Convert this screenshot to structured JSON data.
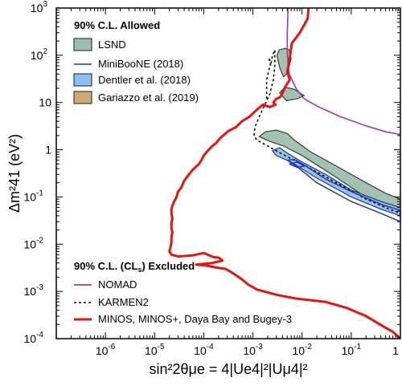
{
  "chart_data": {
    "type": "line",
    "xscale": "log",
    "yscale": "log",
    "xlim": [
      1e-07,
      1
    ],
    "ylim": [
      0.0001,
      1000
    ],
    "x_ticks": [
      {
        "value": 1e-06,
        "label": "10",
        "exp": "-6"
      },
      {
        "value": 1e-05,
        "label": "10",
        "exp": "-5"
      },
      {
        "value": 0.0001,
        "label": "10",
        "exp": "-4"
      },
      {
        "value": 0.001,
        "label": "10",
        "exp": "-3"
      },
      {
        "value": 0.01,
        "label": "10",
        "exp": "-2"
      },
      {
        "value": 0.1,
        "label": "10",
        "exp": "-1"
      },
      {
        "value": 1,
        "label": "1",
        "exp": ""
      }
    ],
    "y_ticks": [
      {
        "value": 0.0001,
        "label": "10",
        "exp": "-4"
      },
      {
        "value": 0.001,
        "label": "10",
        "exp": "-3"
      },
      {
        "value": 0.01,
        "label": "10",
        "exp": "-2"
      },
      {
        "value": 0.1,
        "label": "10",
        "exp": "-1"
      },
      {
        "value": 1,
        "label": "1",
        "exp": ""
      },
      {
        "value": 10,
        "label": "10",
        "exp": ""
      },
      {
        "value": 100,
        "label": "10",
        "exp": "2"
      },
      {
        "value": 1000,
        "label": "10",
        "exp": "3"
      }
    ],
    "xlabel": "sin²2θμe = 4|Ue4|²|Uμ4|²",
    "ylabel": "Δm²41 (eV²)",
    "legend_allowed": {
      "heading": "90% C.L. Allowed",
      "entries": [
        {
          "name": "LSND",
          "kind": "patch",
          "fill": "#9fbfae",
          "stroke": "#2f3f36"
        },
        {
          "name": "MiniBooNE (2018)",
          "kind": "line",
          "stroke": "#1f34c9"
        },
        {
          "name": "Dentler et al. (2018)",
          "kind": "patch",
          "fill": "#8fbff0",
          "stroke": "#26405a"
        },
        {
          "name": "Gariazzo et al. (2019)",
          "kind": "patch",
          "fill": "#cda878",
          "stroke": "#4a3a28"
        }
      ]
    },
    "legend_excluded": {
      "heading_prefix": "90% C.L. (CL",
      "heading_sub": "s",
      "heading_suffix": ") Excluded",
      "entries": [
        {
          "name": "NOMAD",
          "kind": "line",
          "stroke": "#a53aa5",
          "dash": "none"
        },
        {
          "name": "KARMEN2",
          "kind": "line",
          "stroke": "#000000",
          "dash": "3,3"
        },
        {
          "name": "MINOS, MINOS+, Daya Bay and Bugey-3",
          "kind": "line",
          "stroke": "#e8140c",
          "dash": "none"
        }
      ]
    },
    "series": [
      {
        "name": "NOMAD",
        "kind": "line",
        "stroke": "#a53aa5",
        "width": 1.6,
        "points": [
          [
            0.0052,
            1000
          ],
          [
            0.005,
            300
          ],
          [
            0.005,
            100
          ],
          [
            0.0055,
            40
          ],
          [
            0.0075,
            20
          ],
          [
            0.011,
            12
          ],
          [
            0.022,
            8
          ],
          [
            0.06,
            5
          ],
          [
            0.2,
            3.2
          ],
          [
            0.5,
            2.4
          ],
          [
            1,
            2.1
          ]
        ]
      },
      {
        "name": "KARMEN2",
        "kind": "line",
        "stroke": "#000000",
        "width": 1.5,
        "dash": "3,3",
        "points": [
          [
            0.0019,
            12
          ],
          [
            0.0019,
            30
          ],
          [
            0.0023,
            70
          ],
          [
            0.0021,
            90
          ],
          [
            0.0023,
            60
          ],
          [
            0.0025,
            100
          ],
          [
            0.0028,
            130
          ],
          [
            0.0028,
            60
          ],
          [
            0.0026,
            30
          ],
          [
            0.0022,
            15
          ],
          [
            0.0014,
            5.5
          ],
          [
            0.0011,
            3
          ],
          [
            0.00105,
            2
          ],
          [
            0.0012,
            1.6
          ],
          [
            0.002,
            1.2
          ],
          [
            0.004,
            0.8
          ],
          [
            0.012,
            0.45
          ],
          [
            0.05,
            0.2
          ],
          [
            0.2,
            0.09
          ],
          [
            0.6,
            0.055
          ],
          [
            1,
            0.045
          ]
        ]
      },
      {
        "name": "MINOS, MINOS+, Daya Bay and Bugey-3",
        "kind": "line",
        "stroke": "#e8140c",
        "width": 3,
        "points": [
          [
            0.0135,
            1000
          ],
          [
            0.013,
            600
          ],
          [
            0.0105,
            400
          ],
          [
            0.009,
            300
          ],
          [
            0.0072,
            220
          ],
          [
            0.0062,
            180
          ],
          [
            0.0058,
            110
          ],
          [
            0.0054,
            70
          ],
          [
            0.005,
            45
          ],
          [
            0.0056,
            30
          ],
          [
            0.0046,
            22
          ],
          [
            0.004,
            16
          ],
          [
            0.0036,
            13
          ],
          [
            0.003,
            12
          ],
          [
            0.0026,
            10
          ],
          [
            0.0029,
            9
          ],
          [
            0.0022,
            8
          ],
          [
            0.0016,
            9
          ],
          [
            0.0012,
            7
          ],
          [
            0.00085,
            5
          ],
          [
            0.0006,
            4
          ],
          [
            0.00045,
            3
          ],
          [
            0.00032,
            2.5
          ],
          [
            0.00022,
            1.8
          ],
          [
            0.00018,
            1.4
          ],
          [
            0.00015,
            1.2
          ],
          [
            0.00012,
            0.95
          ],
          [
            0.0001,
            0.75
          ],
          [
            9e-05,
            0.6
          ],
          [
            8e-05,
            0.5
          ],
          [
            6e-05,
            0.38
          ],
          [
            5e-05,
            0.3
          ],
          [
            4e-05,
            0.22
          ],
          [
            3.5e-05,
            0.16
          ],
          [
            3e-05,
            0.13
          ],
          [
            2.8e-05,
            0.1
          ],
          [
            2.5e-05,
            0.08
          ],
          [
            2.3e-05,
            0.065
          ],
          [
            2.2e-05,
            0.055
          ],
          [
            2.2e-05,
            0.045
          ],
          [
            2.3e-05,
            0.035
          ],
          [
            2.2e-05,
            0.028
          ],
          [
            2.2e-05,
            0.022
          ],
          [
            2.3e-05,
            0.018
          ],
          [
            2.2e-05,
            0.014
          ],
          [
            2.2e-05,
            0.011
          ],
          [
            2.1e-05,
            0.0085
          ],
          [
            2e-05,
            0.007
          ],
          [
            2.2e-05,
            0.006
          ],
          [
            3e-05,
            0.0055
          ],
          [
            6e-05,
            0.0058
          ],
          [
            0.0001,
            0.0065
          ],
          [
            0.00013,
            0.0058
          ],
          [
            0.00016,
            0.0053
          ],
          [
            0.0002,
            0.0052
          ],
          [
            0.00024,
            0.0045
          ],
          [
            0.00015,
            0.004
          ],
          [
            7e-05,
            0.0037
          ],
          [
            0.00012,
            0.0035
          ],
          [
            0.00018,
            0.0032
          ],
          [
            0.00028,
            0.003
          ],
          [
            0.0004,
            0.0024
          ],
          [
            0.0006,
            0.0018
          ],
          [
            0.0008,
            0.0014
          ],
          [
            0.0012,
            0.0011
          ],
          [
            0.003,
            0.00085
          ],
          [
            0.008,
            0.0007
          ],
          [
            0.03,
            0.0006
          ],
          [
            0.08,
            0.00045
          ],
          [
            0.2,
            0.0003
          ],
          [
            0.5,
            0.00017
          ],
          [
            0.7,
            0.00014
          ],
          [
            1,
            0.0001
          ]
        ]
      },
      {
        "name": "LSND",
        "kind": "patch",
        "fill": "#9fbfae",
        "stroke": "#2f3f36",
        "points": [
          [
            0.00135,
            1.9
          ],
          [
            0.0022,
            1.5
          ],
          [
            0.0042,
            1.2
          ],
          [
            0.01,
            0.75
          ],
          [
            0.04,
            0.3
          ],
          [
            0.15,
            0.12
          ],
          [
            0.6,
            0.055
          ],
          [
            1,
            0.045
          ],
          [
            1,
            0.09
          ],
          [
            0.5,
            0.12
          ],
          [
            0.2,
            0.2
          ],
          [
            0.05,
            0.45
          ],
          [
            0.015,
            0.9
          ],
          [
            0.007,
            1.6
          ],
          [
            0.005,
            2.2
          ],
          [
            0.003,
            2.6
          ],
          [
            0.0018,
            2.4
          ],
          [
            0.00135,
            1.9
          ]
        ]
      },
      {
        "name": "LSND",
        "kind": "patch",
        "fill": "#9fbfae",
        "stroke": "#2f3f36",
        "points": [
          [
            0.0031,
            100
          ],
          [
            0.0035,
            55
          ],
          [
            0.0042,
            35
          ],
          [
            0.0048,
            40
          ],
          [
            0.0055,
            60
          ],
          [
            0.006,
            85
          ],
          [
            0.0055,
            130
          ],
          [
            0.0045,
            140
          ],
          [
            0.0034,
            130
          ],
          [
            0.0031,
            100
          ]
        ]
      },
      {
        "name": "LSND",
        "kind": "patch",
        "fill": "#9fbfae",
        "stroke": "#2f3f36",
        "points": [
          [
            0.0035,
            16
          ],
          [
            0.0048,
            11
          ],
          [
            0.008,
            12
          ],
          [
            0.011,
            14
          ],
          [
            0.007,
            19
          ],
          [
            0.0045,
            21
          ],
          [
            0.0035,
            16
          ]
        ]
      },
      {
        "name": "Dentler et al. (2018)",
        "kind": "patch",
        "fill": "#8fbff0",
        "stroke": "#26405a",
        "points": [
          [
            0.0025,
            0.95
          ],
          [
            0.003,
            0.75
          ],
          [
            0.006,
            0.55
          ],
          [
            0.02,
            0.25
          ],
          [
            0.1,
            0.1
          ],
          [
            0.4,
            0.055
          ],
          [
            1,
            0.04
          ],
          [
            1,
            0.06
          ],
          [
            0.4,
            0.08
          ],
          [
            0.1,
            0.14
          ],
          [
            0.03,
            0.3
          ],
          [
            0.01,
            0.55
          ],
          [
            0.005,
            0.85
          ],
          [
            0.0035,
            1.1
          ],
          [
            0.0025,
            0.95
          ]
        ]
      },
      {
        "name": "MiniBooNE (2018)",
        "kind": "line",
        "stroke": "#1f34c9",
        "width": 1.5,
        "points": [
          [
            0.005,
            0.6
          ],
          [
            0.008,
            0.43
          ],
          [
            0.02,
            0.2
          ],
          [
            0.1,
            0.08
          ],
          [
            0.4,
            0.045
          ],
          [
            1,
            0.03
          ],
          [
            1,
            0.052
          ],
          [
            0.4,
            0.07
          ],
          [
            0.1,
            0.13
          ],
          [
            0.03,
            0.24
          ],
          [
            0.012,
            0.45
          ],
          [
            0.007,
            0.62
          ],
          [
            0.005,
            0.6
          ]
        ]
      },
      {
        "name": "MiniBooNE (2018)",
        "kind": "line",
        "stroke": "#1f34c9",
        "width": 1.5,
        "points": [
          [
            0.0055,
            0.5
          ],
          [
            0.008,
            0.42
          ],
          [
            0.011,
            0.45
          ],
          [
            0.008,
            0.55
          ],
          [
            0.0055,
            0.5
          ]
        ]
      }
    ]
  }
}
